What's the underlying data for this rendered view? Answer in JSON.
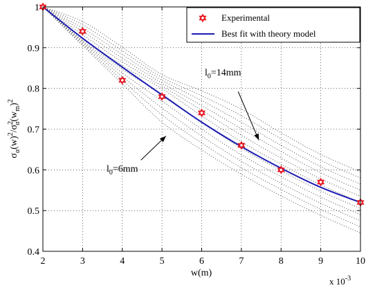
{
  "chart_data": {
    "type": "scatter",
    "x": [
      2,
      3,
      4,
      5,
      6,
      7,
      8,
      9,
      10
    ],
    "xlabel": "w(m)",
    "x_multiplier": "x 10",
    "x_multiplier_exp": "-3",
    "xlim": [
      2,
      10
    ],
    "ylim": [
      0.4,
      1
    ],
    "x_ticks": [
      2,
      3,
      4,
      5,
      6,
      7,
      8,
      9,
      10
    ],
    "y_ticks": [
      0.4,
      0.5,
      0.6,
      0.7,
      0.8,
      0.9,
      1
    ],
    "grid": true,
    "legend_position": "top-right",
    "ylabel": {
      "p1": "σ",
      "p1_sub": "α",
      "p2": "(w)",
      "p2_sup": "2",
      "p3": "/σ",
      "p3_sup": "2",
      "p3_sub": "α",
      "p4": "(w",
      "p4_sub": "m",
      "p5": ")",
      "p5_sup": "2"
    },
    "series": [
      {
        "name": "Experimental",
        "marker": "hexagram",
        "color": "#e8141e",
        "values": [
          1.0,
          0.94,
          0.82,
          0.78,
          0.74,
          0.66,
          0.6,
          0.57,
          0.52
        ]
      },
      {
        "name": "Best fit with theory model",
        "style": "solid-line",
        "color": "#1c1cb4",
        "values": [
          1.0,
          0.923,
          0.852,
          0.784,
          0.717,
          0.657,
          0.604,
          0.557,
          0.52
        ]
      }
    ],
    "theory_family": {
      "style": "dotted-line",
      "color": "#3a3a3a",
      "curves": [
        [
          1.0,
          0.905,
          0.811,
          0.717,
          0.649,
          0.589,
          0.536,
          0.488,
          0.445
        ],
        [
          1.0,
          0.908,
          0.82,
          0.735,
          0.666,
          0.605,
          0.552,
          0.503,
          0.46
        ],
        [
          1.0,
          0.912,
          0.829,
          0.752,
          0.683,
          0.621,
          0.567,
          0.518,
          0.475
        ],
        [
          1.0,
          0.915,
          0.838,
          0.769,
          0.7,
          0.637,
          0.583,
          0.533,
          0.49
        ],
        [
          1.0,
          0.918,
          0.847,
          0.786,
          0.717,
          0.653,
          0.598,
          0.548,
          0.505
        ],
        [
          1.0,
          0.924,
          0.856,
          0.799,
          0.733,
          0.669,
          0.614,
          0.563,
          0.52
        ],
        [
          1.0,
          0.932,
          0.865,
          0.806,
          0.746,
          0.685,
          0.629,
          0.578,
          0.535
        ],
        [
          1.0,
          0.94,
          0.874,
          0.813,
          0.758,
          0.701,
          0.645,
          0.593,
          0.55
        ],
        [
          1.0,
          0.948,
          0.883,
          0.82,
          0.77,
          0.717,
          0.66,
          0.608,
          0.565
        ],
        [
          1.0,
          0.956,
          0.892,
          0.827,
          0.782,
          0.733,
          0.676,
          0.623,
          0.58
        ],
        [
          1.0,
          0.964,
          0.901,
          0.834,
          0.794,
          0.749,
          0.691,
          0.638,
          0.595
        ]
      ]
    },
    "annotations": [
      {
        "text": "l",
        "sub": "0",
        "suffix": "=14mm",
        "arrow_from": [
          6.92,
          0.792
        ],
        "arrow_to": [
          7.44,
          0.673
        ]
      },
      {
        "text": "l",
        "sub": "0",
        "suffix": "=6mm",
        "arrow_from": [
          4.47,
          0.624
        ],
        "arrow_to": [
          5.1,
          0.683
        ]
      }
    ]
  }
}
